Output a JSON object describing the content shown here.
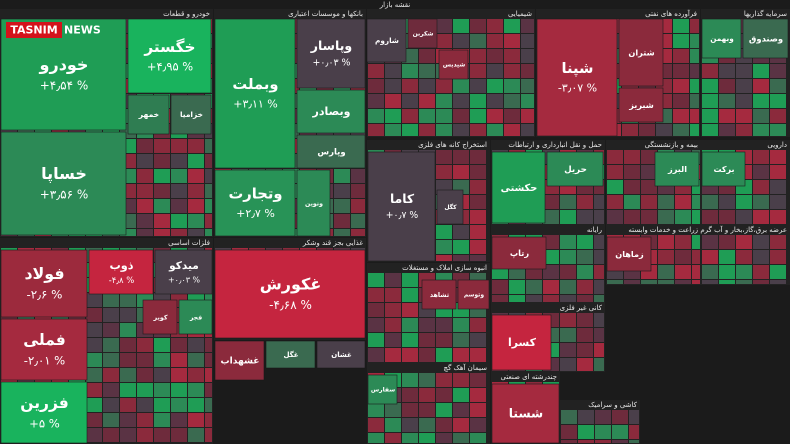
{
  "header": {
    "title": "نقشه بازار",
    "logo": "TASNIM",
    "logo_suffix": "NEWS"
  },
  "sectors": [
    {
      "name": "خودرو و قطعات",
      "tiles": [
        {
          "name": "خودرو",
          "change": "+۴٫۵۴ %",
          "color": "#1f9d55"
        },
        {
          "name": "خساپا",
          "change": "+۳٫۵۶ %",
          "color": "#2c8a56"
        },
        {
          "name": "خگستر",
          "change": "+۴٫۹۵ %",
          "color": "#19b35d"
        },
        {
          "name": "خمهر",
          "color": "#2f7d52"
        },
        {
          "name": "خزامیا",
          "color": "#3a6a50"
        }
      ]
    },
    {
      "name": "بانکها و موسسات اعتباری",
      "tiles": [
        {
          "name": "وبملت",
          "change": "+۳٫۱۱ %",
          "color": "#1f9d55"
        },
        {
          "name": "وتجارت",
          "change": "+۲٫۷ %",
          "color": "#289357"
        },
        {
          "name": "وپاسار",
          "change": "+۰٫۰۳ %",
          "color": "#4a3f4a"
        },
        {
          "name": "وبصادر",
          "color": "#2c8a56"
        },
        {
          "name": "وپارس",
          "color": "#3a6a50"
        },
        {
          "name": "ونوین",
          "color": "#2c8a56"
        }
      ]
    },
    {
      "name": "شیمیایی",
      "tiles": [
        {
          "name": "شاروم",
          "color": "#4a3f4a"
        },
        {
          "name": "شکربن",
          "color": "#6e2b3c"
        },
        {
          "name": "شپدیس",
          "color": "#8b2a3c"
        }
      ]
    },
    {
      "name": "فرآورده های نفتی",
      "tiles": [
        {
          "name": "شپنا",
          "change": "-۳٫۰۷ %",
          "color": "#a52a3f"
        },
        {
          "name": "شتران",
          "color": "#8b2a3c"
        },
        {
          "name": "شبریز",
          "color": "#8b2a3c"
        }
      ]
    },
    {
      "name": "سرمایه گذاریها",
      "tiles": [
        {
          "name": "وبهمن",
          "color": "#2c8a56"
        },
        {
          "name": "وصندوق",
          "color": "#3a6a50"
        }
      ]
    },
    {
      "name": "استخراج کانه های فلزی",
      "tiles": [
        {
          "name": "کاما",
          "change": "+۰٫۷ %",
          "color": "#4a3f4a"
        },
        {
          "name": "کگل",
          "color": "#4a3f4a"
        }
      ]
    },
    {
      "name": "حمل و نقل انبارداری و ارتباطات",
      "tiles": [
        {
          "name": "حکشتی",
          "color": "#1f9d55"
        },
        {
          "name": "حریل",
          "color": "#2c8a56"
        }
      ]
    },
    {
      "name": "بیمه و بازنشستگی",
      "tiles": [
        {
          "name": "البرز",
          "color": "#2c8a56"
        }
      ]
    },
    {
      "name": "دارویی",
      "tiles": [
        {
          "name": "برکت",
          "color": "#2c8a56"
        }
      ]
    },
    {
      "name": "فلزات اساسی",
      "tiles": [
        {
          "name": "فولاد",
          "change": "-۲٫۶ %",
          "color": "#9c2a3d"
        },
        {
          "name": "فملی",
          "change": "-۲٫۰۱ %",
          "color": "#a52a3f"
        },
        {
          "name": "فزرین",
          "change": "+۵ %",
          "color": "#19b35d"
        },
        {
          "name": "ذوب",
          "change": "-۴٫۸ %",
          "color": "#c5253f"
        },
        {
          "name": "میدکو",
          "change": "+۰٫۰۳ %",
          "color": "#4a3f4a"
        },
        {
          "name": "کویر",
          "color": "#8b2a3c"
        },
        {
          "name": "فجر",
          "color": "#2c8a56"
        }
      ]
    },
    {
      "name": "غذایی بجز قند وشکر",
      "tiles": [
        {
          "name": "غکورش",
          "change": "-۴٫۶۸ %",
          "color": "#c5253f"
        },
        {
          "name": "غشهداب",
          "color": "#8b2a3c"
        },
        {
          "name": "غگل",
          "color": "#3a6a50"
        },
        {
          "name": "غشان",
          "color": "#4a3f4a"
        }
      ]
    },
    {
      "name": "انبوه سازی املاک و مستغلات",
      "tiles": [
        {
          "name": "ثشاهد",
          "color": "#8b2a3c"
        },
        {
          "name": "وتوسم",
          "color": "#8b2a3c"
        }
      ]
    },
    {
      "name": "رایانه",
      "tiles": [
        {
          "name": "رتاپ",
          "color": "#8b2a3c"
        }
      ]
    },
    {
      "name": "کانی غیر فلزی",
      "tiles": [
        {
          "name": "کسرا",
          "color": "#c5253f"
        }
      ]
    },
    {
      "name": "سیمان آهک گچ",
      "tiles": [
        {
          "name": "سفارس",
          "color": "#2c8a56"
        }
      ]
    },
    {
      "name": "چندرشته ای صنعتی",
      "tiles": [
        {
          "name": "شستا",
          "color": "#a52a3f"
        }
      ]
    },
    {
      "name": "زراعت و خدمات وابسته",
      "tiles": [
        {
          "name": "زماهان",
          "color": "#8b2a3c"
        }
      ]
    },
    {
      "name": "عرضه برق،گاز،بخار و آب گرم",
      "tiles": []
    },
    {
      "name": "کاشی و سرامیک",
      "tiles": []
    }
  ]
}
